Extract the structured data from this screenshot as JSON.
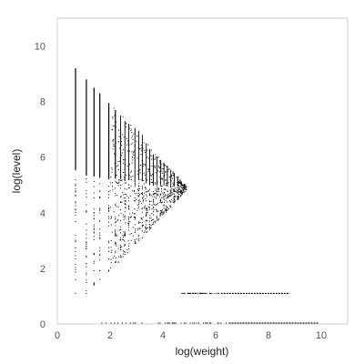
{
  "chart_data": {
    "type": "scatter",
    "title": "",
    "xlabel": "log(weight)",
    "ylabel": "log(level)",
    "xlim": [
      0,
      11
    ],
    "ylim": [
      0,
      11
    ],
    "x_ticks": [
      "0",
      "2",
      "4",
      "6",
      "8",
      "10"
    ],
    "y_ticks": [
      "0",
      "2",
      "4",
      "6",
      "8",
      "10"
    ],
    "grid": false,
    "legend": "none",
    "colors": {
      "points": "#000000",
      "frame": "#d0d0d0",
      "tick_text": "#555555"
    },
    "columns": [
      {
        "x": 0.69,
        "y_min": 1.1,
        "y_max": 9.2
      },
      {
        "x": 1.1,
        "y_min": 1.1,
        "y_max": 8.8
      },
      {
        "x": 1.39,
        "y_min": 1.4,
        "y_max": 8.5
      },
      {
        "x": 1.61,
        "y_min": 1.6,
        "y_max": 8.3
      },
      {
        "x": 1.95,
        "y_min": 1.9,
        "y_max": 7.95
      },
      {
        "x": 2.2,
        "y_min": 2.2,
        "y_max": 7.7
      },
      {
        "x": 2.4,
        "y_min": 2.4,
        "y_max": 7.5
      },
      {
        "x": 2.56,
        "y_min": 2.5,
        "y_max": 7.3
      },
      {
        "x": 2.71,
        "y_min": 2.7,
        "y_max": 7.2
      },
      {
        "x": 2.94,
        "y_min": 2.9,
        "y_max": 7.05
      },
      {
        "x": 3.09,
        "y_min": 3.0,
        "y_max": 6.95
      },
      {
        "x": 3.22,
        "y_min": 3.1,
        "y_max": 6.8
      },
      {
        "x": 3.37,
        "y_min": 3.3,
        "y_max": 6.5
      },
      {
        "x": 3.5,
        "y_min": 3.4,
        "y_max": 6.3
      },
      {
        "x": 3.64,
        "y_min": 3.6,
        "y_max": 6.1
      },
      {
        "x": 3.78,
        "y_min": 3.8,
        "y_max": 6.0
      },
      {
        "x": 3.91,
        "y_min": 3.9,
        "y_max": 5.9
      },
      {
        "x": 4.04,
        "y_min": 4.0,
        "y_max": 5.8
      },
      {
        "x": 4.17,
        "y_min": 4.1,
        "y_max": 5.7
      },
      {
        "x": 4.3,
        "y_min": 4.2,
        "y_max": 5.55
      },
      {
        "x": 4.43,
        "y_min": 4.4,
        "y_max": 5.4
      },
      {
        "x": 4.56,
        "y_min": 4.5,
        "y_max": 5.3
      },
      {
        "x": 4.69,
        "y_min": 4.7,
        "y_max": 5.15
      },
      {
        "x": 4.82,
        "y_min": 4.85,
        "y_max": 5.05
      }
    ],
    "horizontal_bands": [
      {
        "y": 1.1,
        "x_min": 4.7,
        "x_max": 8.8,
        "dense_from": 6.2
      },
      {
        "y": 0.0,
        "x_min": 1.6,
        "x_max": 9.9,
        "dense_from": 6.5
      }
    ]
  }
}
